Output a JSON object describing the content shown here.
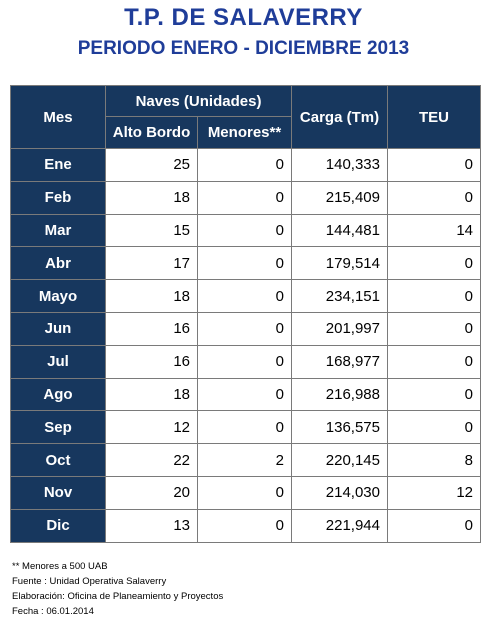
{
  "title": "T.P. DE SALAVERRY",
  "subtitle": "PERIODO ENERO - DICIEMBRE 2013",
  "headers": {
    "mes": "Mes",
    "naves": "Naves (Unidades)",
    "alto_bordo": "Alto Bordo",
    "menores": "Menores**",
    "carga": "Carga (Tm)",
    "teu": "TEU"
  },
  "rows": [
    {
      "mes": "Ene",
      "alto_bordo": "25",
      "menores": "0",
      "carga": "140,333",
      "teu": "0"
    },
    {
      "mes": "Feb",
      "alto_bordo": "18",
      "menores": "0",
      "carga": "215,409",
      "teu": "0"
    },
    {
      "mes": "Mar",
      "alto_bordo": "15",
      "menores": "0",
      "carga": "144,481",
      "teu": "14"
    },
    {
      "mes": "Abr",
      "alto_bordo": "17",
      "menores": "0",
      "carga": "179,514",
      "teu": "0"
    },
    {
      "mes": "Mayo",
      "alto_bordo": "18",
      "menores": "0",
      "carga": "234,151",
      "teu": "0"
    },
    {
      "mes": "Jun",
      "alto_bordo": "16",
      "menores": "0",
      "carga": "201,997",
      "teu": "0"
    },
    {
      "mes": "Jul",
      "alto_bordo": "16",
      "menores": "0",
      "carga": "168,977",
      "teu": "0"
    },
    {
      "mes": "Ago",
      "alto_bordo": "18",
      "menores": "0",
      "carga": "216,988",
      "teu": "0"
    },
    {
      "mes": "Sep",
      "alto_bordo": "12",
      "menores": "0",
      "carga": "136,575",
      "teu": "0"
    },
    {
      "mes": "Oct",
      "alto_bordo": "22",
      "menores": "2",
      "carga": "220,145",
      "teu": "8"
    },
    {
      "mes": "Nov",
      "alto_bordo": "20",
      "menores": "0",
      "carga": "214,030",
      "teu": "12"
    },
    {
      "mes": "Dic",
      "alto_bordo": "13",
      "menores": "0",
      "carga": "221,944",
      "teu": "0"
    }
  ],
  "notes": {
    "menores": "** Menores a 500 UAB",
    "fuente": "Fuente : Unidad Operativa Salaverry",
    "elaboracion": "Elaboración: Oficina de Planeamiento y Proyectos",
    "fecha": "Fecha : 06.01.2014"
  },
  "colors": {
    "title": "#1f3d99",
    "header_bg": "#17375e",
    "header_text": "#ffffff",
    "border": "#7a7a7a"
  }
}
